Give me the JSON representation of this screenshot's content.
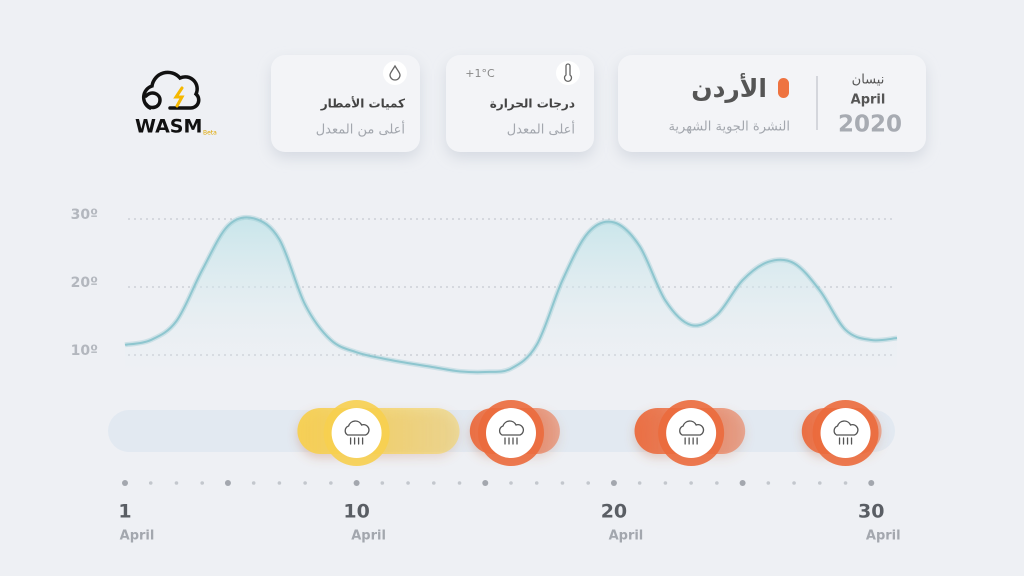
{
  "logo": {
    "name": "WASM",
    "tag": "Beta"
  },
  "header": {
    "month_ar": "نيسان",
    "month_en": "April",
    "year": "2020",
    "country": "الأردن",
    "subtitle": "النشرة الجوية الشهرية"
  },
  "cards": [
    {
      "title": "درجات الحرارة",
      "status": "أعلى المعدل",
      "delta": "+1°C"
    },
    {
      "title": "كميات الأمطار",
      "status": "أعلى من المعدل"
    }
  ],
  "chart_data": {
    "type": "line",
    "x": [
      1,
      2,
      3,
      4,
      5,
      6,
      7,
      8,
      9,
      10,
      11,
      12,
      13,
      14,
      15,
      16,
      17,
      18,
      19,
      20,
      21,
      22,
      23,
      24,
      25,
      26,
      27,
      28,
      29,
      30,
      31
    ],
    "values": [
      11.5,
      12.2,
      15,
      22.5,
      29,
      30.1,
      27,
      17.4,
      12.2,
      10.4,
      9.5,
      8.8,
      8.2,
      7.6,
      7.5,
      8,
      11.5,
      21,
      28,
      29.5,
      26,
      18,
      14.4,
      15.9,
      21,
      23.7,
      23.5,
      19.5,
      13.7,
      12.2,
      12.5
    ],
    "color": "#8ec6cf",
    "xlim": [
      1,
      31
    ],
    "xticks": [
      1,
      10,
      20,
      30
    ],
    "x_unit_label": "April",
    "ylim": [
      5,
      33
    ],
    "yticks": [
      {
        "value": 30,
        "label": "30º"
      },
      {
        "value": 20,
        "label": "20º"
      },
      {
        "value": 10,
        "label": "10º"
      }
    ],
    "grid": true,
    "rain_periods": [
      {
        "start": 7.7,
        "end": 14,
        "peak": 10,
        "color": "#f7cf4f"
      },
      {
        "start": 14.4,
        "end": 17.9,
        "peak": 16,
        "color": "#eb6a3c"
      },
      {
        "start": 20.8,
        "end": 25.1,
        "peak": 23,
        "color": "#eb6a3c"
      },
      {
        "start": 27.3,
        "end": 30.4,
        "peak": 29,
        "color": "#eb6a3c"
      }
    ]
  }
}
